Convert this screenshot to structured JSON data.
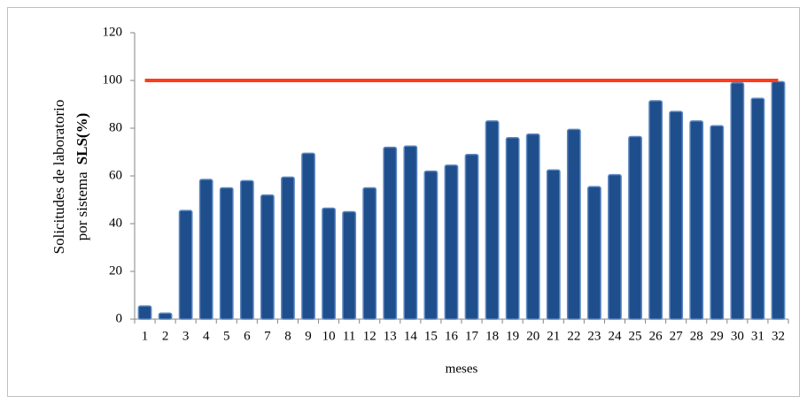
{
  "chart_data": {
    "type": "bar",
    "ylabel": [
      "Solicitudes de laboratorio",
      "por sistema",
      "SLS(%)"
    ],
    "xlabel": "meses",
    "categories": [
      "1",
      "2",
      "3",
      "4",
      "5",
      "6",
      "7",
      "8",
      "9",
      "10",
      "11",
      "12",
      "13",
      "14",
      "15",
      "16",
      "17",
      "18",
      "19",
      "20",
      "21",
      "22",
      "23",
      "24",
      "25",
      "26",
      "27",
      "28",
      "29",
      "30",
      "31",
      "32"
    ],
    "series": [
      {
        "type": "bar",
        "color": "#1f4e8c",
        "values": [
          5.5,
          2.5,
          45.5,
          58.5,
          55,
          58,
          52,
          59.5,
          69.5,
          46.5,
          45,
          55,
          72,
          72.5,
          62,
          64.5,
          69,
          83,
          76,
          77.5,
          62.5,
          79.5,
          55.5,
          60.5,
          76.5,
          91.5,
          87,
          83,
          81,
          99,
          92.5,
          99.5
        ]
      },
      {
        "type": "line",
        "color": "#ff3d1a",
        "values": [
          100,
          100,
          100,
          100,
          100,
          100,
          100,
          100,
          100,
          100,
          100,
          100,
          100,
          100,
          100,
          100,
          100,
          100,
          100,
          100,
          100,
          100,
          100,
          100,
          100,
          100,
          100,
          100,
          100,
          100,
          100,
          100
        ]
      }
    ],
    "ylim": [
      0,
      120
    ],
    "yticks": [
      0,
      20,
      40,
      60,
      80,
      100,
      120
    ],
    "grid": false
  }
}
